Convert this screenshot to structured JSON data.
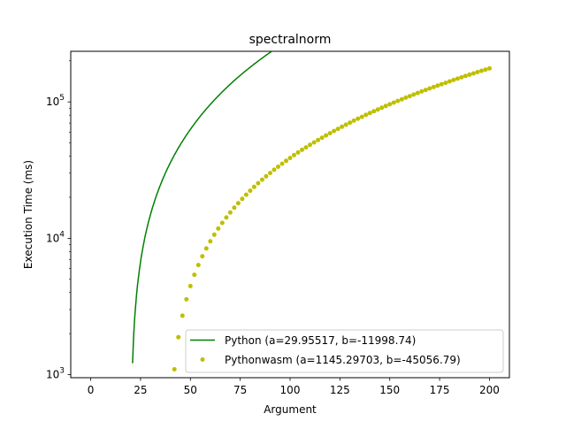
{
  "chart_data": {
    "type": "scatter",
    "title": "spectralnorm",
    "xlabel": "Argument",
    "ylabel": "Execution Time (ms)",
    "xlim": [
      -10,
      210
    ],
    "ylim": [
      950,
      235000
    ],
    "yscale": "log",
    "grid": false,
    "legend_position": "lower right",
    "x_ticks": [
      {
        "value": 0,
        "label": "0"
      },
      {
        "value": 25,
        "label": "25"
      },
      {
        "value": 50,
        "label": "50"
      },
      {
        "value": 75,
        "label": "75"
      },
      {
        "value": 100,
        "label": "100"
      },
      {
        "value": 125,
        "label": "125"
      },
      {
        "value": 150,
        "label": "150"
      },
      {
        "value": 175,
        "label": "175"
      },
      {
        "value": 200,
        "label": "200"
      }
    ],
    "y_ticks": [
      {
        "value": 1000,
        "base": "10",
        "exp": "3"
      },
      {
        "value": 10000,
        "base": "10",
        "exp": "4"
      },
      {
        "value": 100000,
        "base": "10",
        "exp": "5"
      }
    ],
    "series": [
      {
        "name": "Python (a=29.95517, b=-11998.74)",
        "style": "line",
        "color": "#008000",
        "a": 29.95517,
        "b": -11998.74
      },
      {
        "name": "Pythonwasm (a=1145.29703, b=-45056.79)",
        "style": "dots",
        "color": "#bfbf00",
        "a": 1145.29703,
        "b": -45056.79,
        "x_start": 40,
        "x_end": 200,
        "x_step": 2
      }
    ]
  }
}
